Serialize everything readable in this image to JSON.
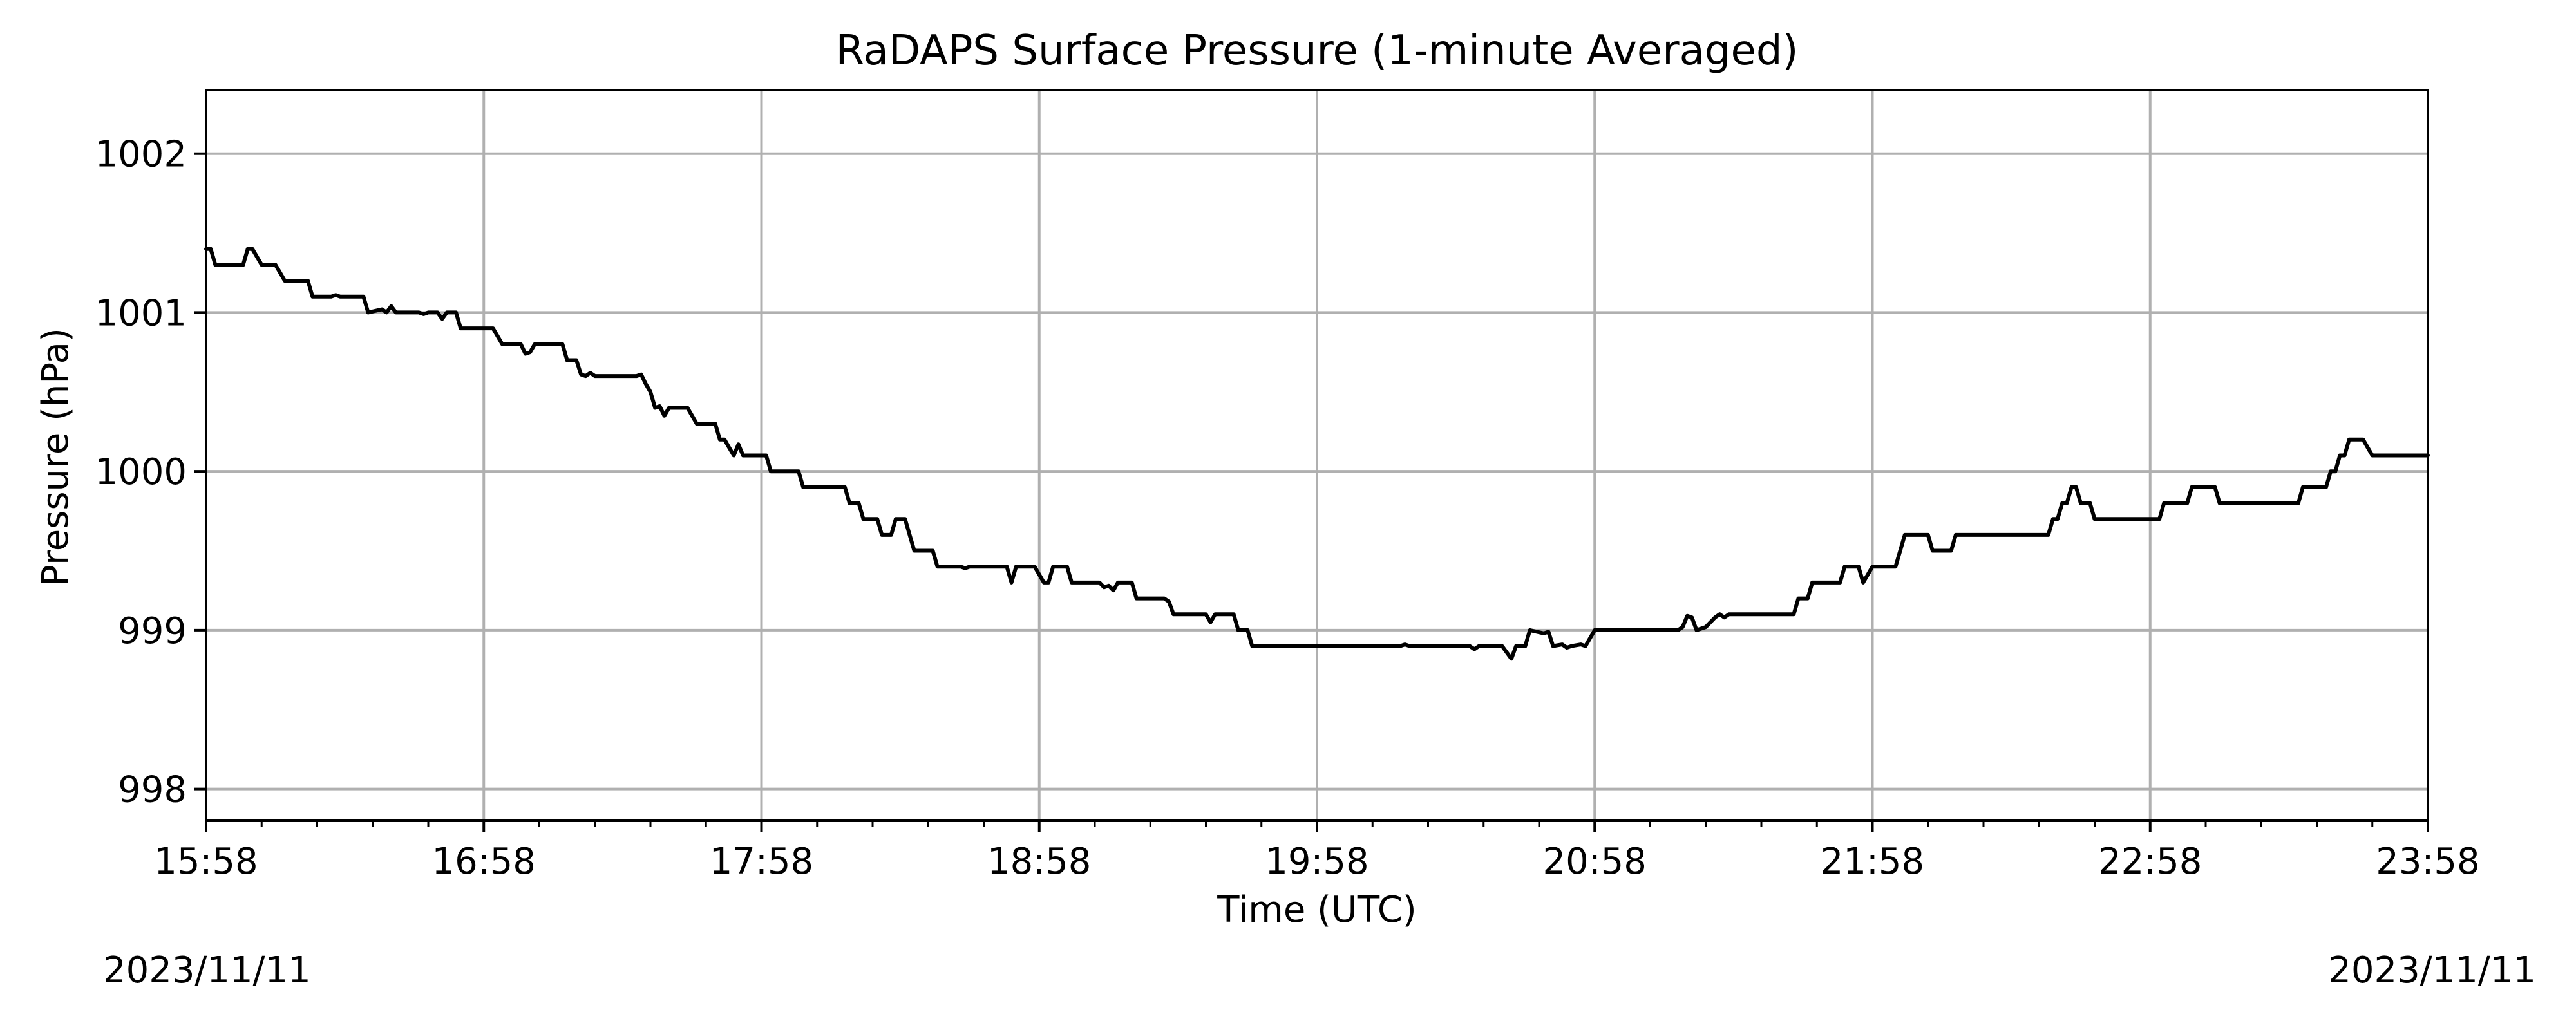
{
  "chart_data": {
    "type": "line",
    "title": "RaDAPS Surface Pressure (1-minute Averaged)",
    "xlabel": "Time (UTC)",
    "ylabel": "Pressure (hPa)",
    "x_tick_labels": [
      "15:58",
      "16:58",
      "17:58",
      "18:58",
      "19:58",
      "20:58",
      "21:58",
      "22:58",
      "23:58"
    ],
    "y_ticks": [
      998,
      999,
      1000,
      1001,
      1002
    ],
    "xlim": [
      "15:58",
      "23:58"
    ],
    "ylim": [
      997.8,
      1002.4
    ],
    "grid": true,
    "line_color": "#000000",
    "grid_color": "#b0b0b0",
    "date_start": "2023/11/11",
    "date_end": "2023/11/11",
    "series": [
      {
        "points": [
          [
            "15:58",
            1001.4
          ],
          [
            "15:59",
            1001.4
          ],
          [
            "16:00",
            1001.3
          ],
          [
            "16:06",
            1001.3
          ],
          [
            "16:07",
            1001.4
          ],
          [
            "16:08",
            1001.4
          ],
          [
            "16:10",
            1001.3
          ],
          [
            "16:13",
            1001.3
          ],
          [
            "16:15",
            1001.2
          ],
          [
            "16:20",
            1001.2
          ],
          [
            "16:21",
            1001.1
          ],
          [
            "16:25",
            1001.1
          ],
          [
            "16:26",
            1001.11
          ],
          [
            "16:27",
            1001.1
          ],
          [
            "16:32",
            1001.1
          ],
          [
            "16:33",
            1001.0
          ],
          [
            "16:36",
            1001.02
          ],
          [
            "16:37",
            1001.0
          ],
          [
            "16:38",
            1001.04
          ],
          [
            "16:39",
            1001.0
          ],
          [
            "16:44",
            1001.0
          ],
          [
            "16:45",
            1000.99
          ],
          [
            "16:46",
            1001.0
          ],
          [
            "16:48",
            1001.0
          ],
          [
            "16:49",
            1000.96
          ],
          [
            "16:50",
            1001.0
          ],
          [
            "16:52",
            1001.0
          ],
          [
            "16:53",
            1000.9
          ],
          [
            "17:00",
            1000.9
          ],
          [
            "17:02",
            1000.8
          ],
          [
            "17:06",
            1000.8
          ],
          [
            "17:07",
            1000.74
          ],
          [
            "17:08",
            1000.75
          ],
          [
            "17:09",
            1000.8
          ],
          [
            "17:15",
            1000.8
          ],
          [
            "17:16",
            1000.7
          ],
          [
            "17:18",
            1000.7
          ],
          [
            "17:19",
            1000.61
          ],
          [
            "17:20",
            1000.6
          ],
          [
            "17:21",
            1000.62
          ],
          [
            "17:22",
            1000.6
          ],
          [
            "17:31",
            1000.6
          ],
          [
            "17:32",
            1000.61
          ],
          [
            "17:33",
            1000.55
          ],
          [
            "17:34",
            1000.5
          ],
          [
            "17:35",
            1000.4
          ],
          [
            "17:36",
            1000.41
          ],
          [
            "17:37",
            1000.35
          ],
          [
            "17:38",
            1000.4
          ],
          [
            "17:42",
            1000.4
          ],
          [
            "17:43",
            1000.35
          ],
          [
            "17:44",
            1000.3
          ],
          [
            "17:48",
            1000.3
          ],
          [
            "17:49",
            1000.2
          ],
          [
            "17:50",
            1000.2
          ],
          [
            "17:51",
            1000.15
          ],
          [
            "17:52",
            1000.1
          ],
          [
            "17:53",
            1000.17
          ],
          [
            "17:54",
            1000.1
          ],
          [
            "17:59",
            1000.1
          ],
          [
            "18:00",
            1000.0
          ],
          [
            "18:06",
            1000.0
          ],
          [
            "18:07",
            999.9
          ],
          [
            "18:16",
            999.9
          ],
          [
            "18:17",
            999.8
          ],
          [
            "18:19",
            999.8
          ],
          [
            "18:20",
            999.7
          ],
          [
            "18:23",
            999.7
          ],
          [
            "18:24",
            999.6
          ],
          [
            "18:26",
            999.6
          ],
          [
            "18:27",
            999.7
          ],
          [
            "18:29",
            999.7
          ],
          [
            "18:30",
            999.6
          ],
          [
            "18:31",
            999.5
          ],
          [
            "18:35",
            999.5
          ],
          [
            "18:36",
            999.4
          ],
          [
            "18:41",
            999.4
          ],
          [
            "18:42",
            999.39
          ],
          [
            "18:43",
            999.4
          ],
          [
            "18:51",
            999.4
          ],
          [
            "18:52",
            999.3
          ],
          [
            "18:53",
            999.4
          ],
          [
            "18:57",
            999.4
          ],
          [
            "18:58",
            999.35
          ],
          [
            "18:59",
            999.3
          ],
          [
            "19:00",
            999.3
          ],
          [
            "19:01",
            999.4
          ],
          [
            "19:04",
            999.4
          ],
          [
            "19:05",
            999.3
          ],
          [
            "19:11",
            999.3
          ],
          [
            "19:12",
            999.27
          ],
          [
            "19:13",
            999.28
          ],
          [
            "19:14",
            999.25
          ],
          [
            "19:15",
            999.3
          ],
          [
            "19:18",
            999.3
          ],
          [
            "19:19",
            999.2
          ],
          [
            "19:25",
            999.2
          ],
          [
            "19:26",
            999.18
          ],
          [
            "19:27",
            999.1
          ],
          [
            "19:34",
            999.1
          ],
          [
            "19:35",
            999.05
          ],
          [
            "19:36",
            999.1
          ],
          [
            "19:40",
            999.1
          ],
          [
            "19:41",
            999.0
          ],
          [
            "19:43",
            999.0
          ],
          [
            "19:44",
            998.9
          ],
          [
            "20:16",
            998.9
          ],
          [
            "20:17",
            998.91
          ],
          [
            "20:18",
            998.9
          ],
          [
            "20:31",
            998.9
          ],
          [
            "20:32",
            998.88
          ],
          [
            "20:33",
            998.9
          ],
          [
            "20:38",
            998.9
          ],
          [
            "20:39",
            998.86
          ],
          [
            "20:40",
            998.82
          ],
          [
            "20:41",
            998.9
          ],
          [
            "20:43",
            998.9
          ],
          [
            "20:44",
            999.0
          ],
          [
            "20:47",
            998.98
          ],
          [
            "20:48",
            998.99
          ],
          [
            "20:49",
            998.9
          ],
          [
            "20:51",
            998.91
          ],
          [
            "20:52",
            998.89
          ],
          [
            "20:53",
            998.9
          ],
          [
            "20:55",
            998.91
          ],
          [
            "20:56",
            998.9
          ],
          [
            "20:57",
            998.95
          ],
          [
            "20:58",
            999.0
          ],
          [
            "21:16",
            999.0
          ],
          [
            "21:17",
            999.02
          ],
          [
            "21:18",
            999.09
          ],
          [
            "21:19",
            999.08
          ],
          [
            "21:20",
            999.0
          ],
          [
            "21:22",
            999.02
          ],
          [
            "21:23",
            999.05
          ],
          [
            "21:24",
            999.08
          ],
          [
            "21:25",
            999.1
          ],
          [
            "21:26",
            999.08
          ],
          [
            "21:27",
            999.1
          ],
          [
            "21:41",
            999.1
          ],
          [
            "21:42",
            999.2
          ],
          [
            "21:44",
            999.2
          ],
          [
            "21:45",
            999.3
          ],
          [
            "21:51",
            999.3
          ],
          [
            "21:52",
            999.4
          ],
          [
            "21:55",
            999.4
          ],
          [
            "21:56",
            999.3
          ],
          [
            "21:57",
            999.35
          ],
          [
            "21:58",
            999.4
          ],
          [
            "22:03",
            999.4
          ],
          [
            "22:04",
            999.5
          ],
          [
            "22:05",
            999.6
          ],
          [
            "22:10",
            999.6
          ],
          [
            "22:11",
            999.5
          ],
          [
            "22:15",
            999.5
          ],
          [
            "22:16",
            999.6
          ],
          [
            "22:36",
            999.6
          ],
          [
            "22:37",
            999.7
          ],
          [
            "22:38",
            999.7
          ],
          [
            "22:39",
            999.8
          ],
          [
            "22:40",
            999.8
          ],
          [
            "22:41",
            999.9
          ],
          [
            "22:42",
            999.9
          ],
          [
            "22:43",
            999.8
          ],
          [
            "22:45",
            999.8
          ],
          [
            "22:46",
            999.7
          ],
          [
            "22:57",
            999.7
          ],
          [
            "22:58",
            999.7
          ],
          [
            "23:00",
            999.7
          ],
          [
            "23:01",
            999.8
          ],
          [
            "23:06",
            999.8
          ],
          [
            "23:07",
            999.9
          ],
          [
            "23:12",
            999.9
          ],
          [
            "23:13",
            999.8
          ],
          [
            "23:30",
            999.8
          ],
          [
            "23:31",
            999.9
          ],
          [
            "23:36",
            999.9
          ],
          [
            "23:37",
            1000.0
          ],
          [
            "23:38",
            1000.0
          ],
          [
            "23:39",
            1000.1
          ],
          [
            "23:40",
            1000.1
          ],
          [
            "23:41",
            1000.2
          ],
          [
            "23:44",
            1000.2
          ],
          [
            "23:45",
            1000.15
          ],
          [
            "23:46",
            1000.1
          ],
          [
            "23:58",
            1000.1
          ]
        ]
      }
    ]
  }
}
